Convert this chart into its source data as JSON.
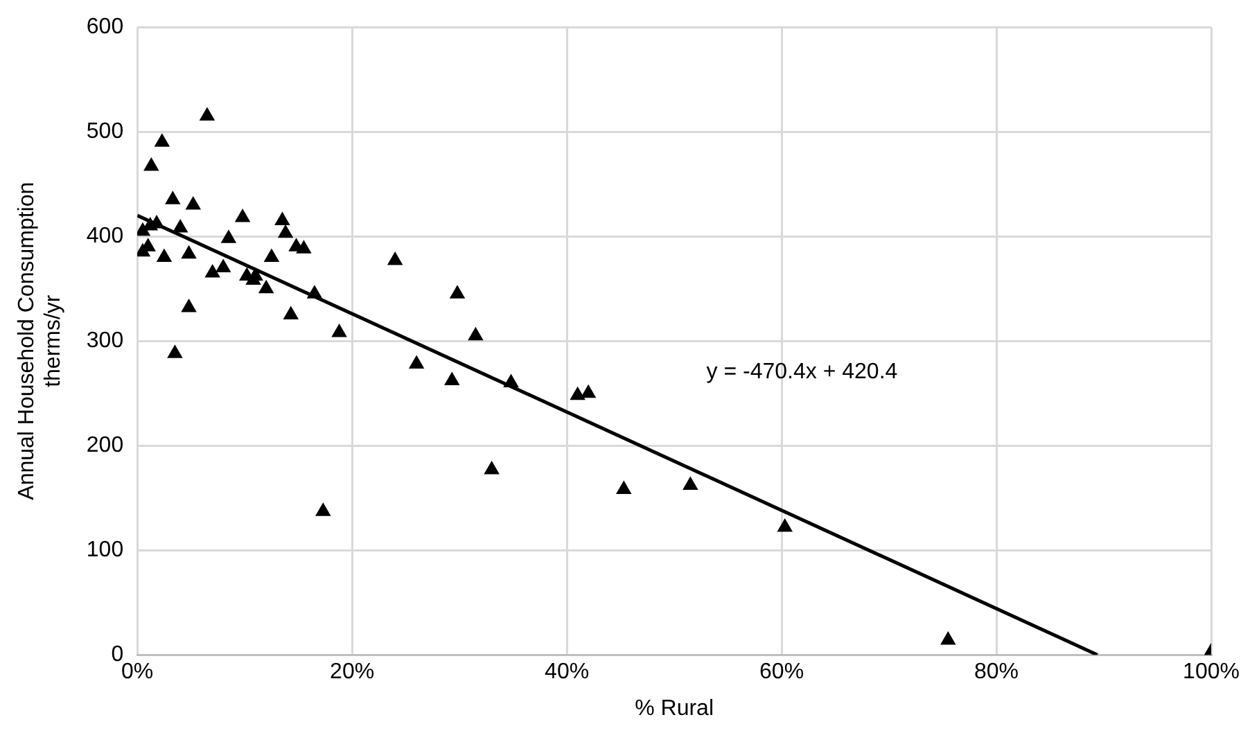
{
  "chart_data": {
    "type": "scatter",
    "xlabel": "% Rural",
    "ylabel": "Annual Household Consumption\ntherms/yr",
    "xlim": [
      0,
      100
    ],
    "xticks": [
      {
        "value": 0,
        "label": "0%"
      },
      {
        "value": 20,
        "label": "20%"
      },
      {
        "value": 40,
        "label": "40%"
      },
      {
        "value": 60,
        "label": "60%"
      },
      {
        "value": 80,
        "label": "80%"
      },
      {
        "value": 100,
        "label": "100%"
      }
    ],
    "ylim": [
      0,
      600
    ],
    "yticks": [
      0,
      100,
      200,
      300,
      400,
      500,
      600
    ],
    "grid": true,
    "legend": false,
    "series": [
      {
        "color": "#000000",
        "marker": "triangle",
        "x": [
          0.5,
          0.5,
          1,
          1.2,
          1.3,
          1.8,
          2.3,
          2.5,
          3.3,
          3.5,
          4,
          4.8,
          4.8,
          5.2,
          6.5,
          7,
          8,
          8.5,
          9.8,
          10.2,
          10.8,
          11,
          12,
          12.5,
          13.5,
          13.8,
          14.3,
          14.8,
          15.5,
          16.5,
          17.3,
          18.8,
          24,
          26,
          29.3,
          29.8,
          31.5,
          33,
          34.8,
          41,
          42,
          45.3,
          51.5,
          60.3,
          75.5,
          100
        ],
        "values": [
          385,
          405,
          390,
          410,
          467,
          412,
          490,
          380,
          435,
          288,
          408,
          383,
          332,
          430,
          515,
          365,
          370,
          398,
          418,
          362,
          358,
          362,
          350,
          380,
          415,
          403,
          325,
          390,
          388,
          345,
          137,
          308,
          377,
          278,
          262,
          345,
          305,
          177,
          260,
          248,
          250,
          158,
          162,
          122,
          14,
          3
        ]
      },
      {
        "type": "line",
        "color": "#000000",
        "x": [
          0,
          89.4
        ],
        "values": [
          420,
          0
        ]
      }
    ],
    "annotations": [
      "y = -470.4x + 420.4"
    ]
  }
}
